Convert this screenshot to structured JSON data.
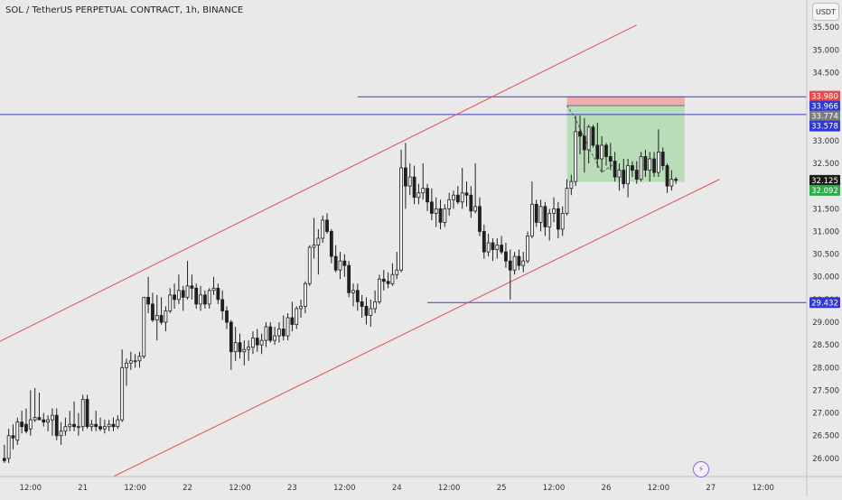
{
  "header": {
    "title": "SOL / TetherUS PERPETUAL CONTRACT, 1h, BINANCE",
    "currency_button": "USDT",
    "flash_icon": "lightning-icon"
  },
  "colors": {
    "background": "#e9e9e9",
    "bull_candle": "#1f1f1f",
    "bear_candle": "#1f1f1f",
    "channel": "#e05050",
    "hline": "#3a3ad6",
    "target_zone": "#a8d8a8",
    "stop_zone": "#f0a3a3"
  },
  "chart_data": {
    "type": "candlestick",
    "symbol": "SOL / TetherUS PERPETUAL CONTRACT",
    "interval": "1h",
    "exchange": "BINANCE",
    "ylim": [
      25.6,
      36.1
    ],
    "xlim": [
      -1,
      184
    ],
    "y_ticks": [
      "26.000",
      "26.500",
      "27.000",
      "27.500",
      "28.000",
      "28.500",
      "29.000",
      "29.500",
      "30.000",
      "30.500",
      "31.000",
      "31.500",
      "32.000",
      "32.500",
      "33.000",
      "33.500",
      "34.000",
      "34.500",
      "35.000",
      "35.500"
    ],
    "x_ticks": [
      {
        "i": 6,
        "label": "12:00"
      },
      {
        "i": 18,
        "label": "21"
      },
      {
        "i": 30,
        "label": "12:00"
      },
      {
        "i": 42,
        "label": "22"
      },
      {
        "i": 54,
        "label": "12:00"
      },
      {
        "i": 66,
        "label": "23"
      },
      {
        "i": 78,
        "label": "12:00"
      },
      {
        "i": 90,
        "label": "24"
      },
      {
        "i": 102,
        "label": "12:00"
      },
      {
        "i": 114,
        "label": "25"
      },
      {
        "i": 126,
        "label": "12:00"
      },
      {
        "i": 138,
        "label": "26"
      },
      {
        "i": 150,
        "label": "12:00"
      },
      {
        "i": 162,
        "label": "27"
      },
      {
        "i": 174,
        "label": "12:00"
      }
    ],
    "price_labels": [
      {
        "value": 33.98,
        "text": "33.980",
        "bg": "#e84a4a",
        "color": "#ffffff"
      },
      {
        "value": 33.966,
        "text": "33.966",
        "bg": "#2f3ad6",
        "color": "#ffffff"
      },
      {
        "value": 33.774,
        "text": "33.774",
        "bg": "#7c7c7c",
        "color": "#ffffff"
      },
      {
        "value": 33.578,
        "text": "33.578",
        "bg": "#2f3ad6",
        "color": "#ffffff"
      },
      {
        "value": 32.125,
        "text": "32.125",
        "bg": "#1a1a1a",
        "color": "#ffffff"
      },
      {
        "value": 32.092,
        "text": "32.092",
        "bg": "#2eaa48",
        "color": "#ffffff"
      },
      {
        "value": 29.432,
        "text": "29.432",
        "bg": "#2f3ad6",
        "color": "#ffffff"
      }
    ],
    "hlines": [
      {
        "value": 33.578,
        "from": -1
      },
      {
        "value": 33.966,
        "from": 81
      },
      {
        "value": 29.432,
        "from": 97
      }
    ],
    "channel_lines": [
      {
        "x1": -1,
        "y1": 28.58,
        "x2": 145,
        "y2": 35.55
      },
      {
        "x1": 25,
        "y1": 25.6,
        "x2": 164,
        "y2": 32.15
      }
    ],
    "position": {
      "from": 129,
      "to": 156,
      "entry": 33.774,
      "stop": 33.98,
      "target": 32.092
    },
    "dashed_path": [
      [
        129,
        33.774
      ],
      [
        131,
        33.48
      ],
      [
        134,
        32.85
      ],
      [
        137,
        32.3
      ],
      [
        140,
        32.5
      ]
    ],
    "candles": [
      [
        26.0,
        26.3,
        25.9,
        25.95
      ],
      [
        26.0,
        26.65,
        25.9,
        26.5
      ],
      [
        26.5,
        26.75,
        26.2,
        26.45
      ],
      [
        26.4,
        26.9,
        26.3,
        26.8
      ],
      [
        26.8,
        27.05,
        26.55,
        26.7
      ],
      [
        26.75,
        27.1,
        26.55,
        26.6
      ],
      [
        26.65,
        27.5,
        26.5,
        26.85
      ],
      [
        26.85,
        27.55,
        26.8,
        26.9
      ],
      [
        26.9,
        27.45,
        26.85,
        26.85
      ],
      [
        26.85,
        27.0,
        26.7,
        26.8
      ],
      [
        26.8,
        26.95,
        26.6,
        26.85
      ],
      [
        26.85,
        27.1,
        26.5,
        26.95
      ],
      [
        26.95,
        27.1,
        26.4,
        26.5
      ],
      [
        26.5,
        26.8,
        26.3,
        26.6
      ],
      [
        26.6,
        26.9,
        26.5,
        26.7
      ],
      [
        26.7,
        27.05,
        26.6,
        26.75
      ],
      [
        26.75,
        27.25,
        26.6,
        26.7
      ],
      [
        26.7,
        27.0,
        26.5,
        26.7
      ],
      [
        26.7,
        27.4,
        26.6,
        27.3
      ],
      [
        27.3,
        27.4,
        26.65,
        26.7
      ],
      [
        26.7,
        26.85,
        26.6,
        26.75
      ],
      [
        26.75,
        27.05,
        26.6,
        26.7
      ],
      [
        26.7,
        26.9,
        26.6,
        26.65
      ],
      [
        26.65,
        26.85,
        26.55,
        26.7
      ],
      [
        26.7,
        26.85,
        26.6,
        26.75
      ],
      [
        26.75,
        26.9,
        26.6,
        26.7
      ],
      [
        26.7,
        26.95,
        26.65,
        26.85
      ],
      [
        26.85,
        28.4,
        26.8,
        28.0
      ],
      [
        28.0,
        28.2,
        27.6,
        28.1
      ],
      [
        28.1,
        28.35,
        27.95,
        28.15
      ],
      [
        28.15,
        28.3,
        28.0,
        28.15
      ],
      [
        28.15,
        28.35,
        28.0,
        28.25
      ],
      [
        28.25,
        29.5,
        28.2,
        29.55
      ],
      [
        29.55,
        30.0,
        29.2,
        29.4
      ],
      [
        29.4,
        29.65,
        29.0,
        29.05
      ],
      [
        29.05,
        29.6,
        28.6,
        29.15
      ],
      [
        29.15,
        29.55,
        28.95,
        29.0
      ],
      [
        29.0,
        29.35,
        28.8,
        29.25
      ],
      [
        29.25,
        29.75,
        29.2,
        29.6
      ],
      [
        29.6,
        29.85,
        29.3,
        29.5
      ],
      [
        29.5,
        30.05,
        29.4,
        29.7
      ],
      [
        29.7,
        29.8,
        29.25,
        29.55
      ],
      [
        29.55,
        30.35,
        29.5,
        29.8
      ],
      [
        29.8,
        30.05,
        29.5,
        29.75
      ],
      [
        29.75,
        29.85,
        29.3,
        29.4
      ],
      [
        29.4,
        29.8,
        29.25,
        29.6
      ],
      [
        29.6,
        29.7,
        29.3,
        29.4
      ],
      [
        29.4,
        29.75,
        29.3,
        29.7
      ],
      [
        29.7,
        30.0,
        29.6,
        29.75
      ],
      [
        29.75,
        29.85,
        29.4,
        29.5
      ],
      [
        29.5,
        29.7,
        29.05,
        29.25
      ],
      [
        29.25,
        29.35,
        28.85,
        29.0
      ],
      [
        29.0,
        29.05,
        27.95,
        28.35
      ],
      [
        28.35,
        28.9,
        28.15,
        28.55
      ],
      [
        28.55,
        28.75,
        28.2,
        28.35
      ],
      [
        28.35,
        28.6,
        28.05,
        28.4
      ],
      [
        28.4,
        28.6,
        28.15,
        28.45
      ],
      [
        28.45,
        28.8,
        28.3,
        28.65
      ],
      [
        28.65,
        28.85,
        28.35,
        28.5
      ],
      [
        28.5,
        28.75,
        28.3,
        28.6
      ],
      [
        28.6,
        29.0,
        28.45,
        28.9
      ],
      [
        28.9,
        29.0,
        28.55,
        28.6
      ],
      [
        28.6,
        28.9,
        28.5,
        28.7
      ],
      [
        28.7,
        29.0,
        28.55,
        28.85
      ],
      [
        28.85,
        29.15,
        28.6,
        28.7
      ],
      [
        28.7,
        29.2,
        28.6,
        29.1
      ],
      [
        29.1,
        29.45,
        28.8,
        28.95
      ],
      [
        28.95,
        29.35,
        28.85,
        29.3
      ],
      [
        29.3,
        29.5,
        29.1,
        29.35
      ],
      [
        29.35,
        29.9,
        29.2,
        29.85
      ],
      [
        29.85,
        30.7,
        29.8,
        30.65
      ],
      [
        30.65,
        31.3,
        30.4,
        30.7
      ],
      [
        30.7,
        31.05,
        30.05,
        30.85
      ],
      [
        30.85,
        31.35,
        30.75,
        31.25
      ],
      [
        31.25,
        31.4,
        30.95,
        31.0
      ],
      [
        31.0,
        31.05,
        30.3,
        30.45
      ],
      [
        30.45,
        30.7,
        30.1,
        30.15
      ],
      [
        30.15,
        30.55,
        29.95,
        30.35
      ],
      [
        30.35,
        30.5,
        30.0,
        30.25
      ],
      [
        30.25,
        30.35,
        29.55,
        29.65
      ],
      [
        29.65,
        29.85,
        29.35,
        29.7
      ],
      [
        29.7,
        29.85,
        29.25,
        29.45
      ],
      [
        29.45,
        29.6,
        29.1,
        29.35
      ],
      [
        29.35,
        29.55,
        28.95,
        29.15
      ],
      [
        29.15,
        29.5,
        28.9,
        29.3
      ],
      [
        29.3,
        29.7,
        29.2,
        29.45
      ],
      [
        29.45,
        30.05,
        29.4,
        29.95
      ],
      [
        29.95,
        30.15,
        29.7,
        29.9
      ],
      [
        29.9,
        30.1,
        29.75,
        29.85
      ],
      [
        29.85,
        30.3,
        29.8,
        30.05
      ],
      [
        30.05,
        30.55,
        29.95,
        30.15
      ],
      [
        30.15,
        32.8,
        30.1,
        32.4
      ],
      [
        32.4,
        32.95,
        31.5,
        32.0
      ],
      [
        32.0,
        32.5,
        31.8,
        32.2
      ],
      [
        32.2,
        32.45,
        31.6,
        31.75
      ],
      [
        31.75,
        32.05,
        31.6,
        31.85
      ],
      [
        31.85,
        32.5,
        31.7,
        31.95
      ],
      [
        31.95,
        32.05,
        31.45,
        31.65
      ],
      [
        31.65,
        31.95,
        31.25,
        31.4
      ],
      [
        31.4,
        31.75,
        31.1,
        31.5
      ],
      [
        31.5,
        31.7,
        31.05,
        31.2
      ],
      [
        31.2,
        31.6,
        31.1,
        31.5
      ],
      [
        31.5,
        31.85,
        31.35,
        31.7
      ],
      [
        31.7,
        31.9,
        31.5,
        31.8
      ],
      [
        31.8,
        32.0,
        31.6,
        31.65
      ],
      [
        31.65,
        32.4,
        31.5,
        31.85
      ],
      [
        31.85,
        32.1,
        31.55,
        31.8
      ],
      [
        31.8,
        32.0,
        31.3,
        31.45
      ],
      [
        31.45,
        32.5,
        31.4,
        31.55
      ],
      [
        31.55,
        31.75,
        30.9,
        31.0
      ],
      [
        31.0,
        31.15,
        30.4,
        30.55
      ],
      [
        30.55,
        30.95,
        30.45,
        30.75
      ],
      [
        30.75,
        30.85,
        30.35,
        30.6
      ],
      [
        30.6,
        30.85,
        30.4,
        30.7
      ],
      [
        30.7,
        30.9,
        30.5,
        30.55
      ],
      [
        30.55,
        30.75,
        30.2,
        30.35
      ],
      [
        30.35,
        30.6,
        29.5,
        30.15
      ],
      [
        30.15,
        30.55,
        30.05,
        30.45
      ],
      [
        30.45,
        30.6,
        30.15,
        30.25
      ],
      [
        30.25,
        30.55,
        30.1,
        30.35
      ],
      [
        30.35,
        31.0,
        30.3,
        30.9
      ],
      [
        30.9,
        32.1,
        30.85,
        31.6
      ],
      [
        31.6,
        31.7,
        31.1,
        31.2
      ],
      [
        31.2,
        31.7,
        31.0,
        31.55
      ],
      [
        31.55,
        31.65,
        30.9,
        31.1
      ],
      [
        31.1,
        31.5,
        30.8,
        31.4
      ],
      [
        31.4,
        31.75,
        31.2,
        31.5
      ],
      [
        31.5,
        31.65,
        30.85,
        31.05
      ],
      [
        31.05,
        31.55,
        30.9,
        31.4
      ],
      [
        31.4,
        32.15,
        31.35,
        31.95
      ],
      [
        31.95,
        32.25,
        31.8,
        32.1
      ],
      [
        32.1,
        33.55,
        32.0,
        33.2
      ],
      [
        33.2,
        33.55,
        32.7,
        33.1
      ],
      [
        33.1,
        33.5,
        32.3,
        32.8
      ],
      [
        32.8,
        33.35,
        32.5,
        33.3
      ],
      [
        33.3,
        33.35,
        32.85,
        32.9
      ],
      [
        32.9,
        33.4,
        32.4,
        32.6
      ],
      [
        32.6,
        33.1,
        32.3,
        32.9
      ],
      [
        32.9,
        32.95,
        32.45,
        32.65
      ],
      [
        32.65,
        32.95,
        32.35,
        32.55
      ],
      [
        32.55,
        32.75,
        32.1,
        32.2
      ],
      [
        32.2,
        32.5,
        31.9,
        32.35
      ],
      [
        32.35,
        32.6,
        31.95,
        32.05
      ],
      [
        32.05,
        32.6,
        31.75,
        32.45
      ],
      [
        32.45,
        32.55,
        32.2,
        32.35
      ],
      [
        32.35,
        32.55,
        32.05,
        32.15
      ],
      [
        32.15,
        32.75,
        32.1,
        32.65
      ],
      [
        32.65,
        32.8,
        32.2,
        32.35
      ],
      [
        32.35,
        32.75,
        32.1,
        32.6
      ],
      [
        32.6,
        32.75,
        32.2,
        32.3
      ],
      [
        32.3,
        33.25,
        32.2,
        32.75
      ],
      [
        32.75,
        32.85,
        32.35,
        32.45
      ],
      [
        32.45,
        32.5,
        31.85,
        32.0
      ],
      [
        32.0,
        32.35,
        31.9,
        32.15
      ],
      [
        32.15,
        32.2,
        32.05,
        32.125
      ]
    ]
  }
}
